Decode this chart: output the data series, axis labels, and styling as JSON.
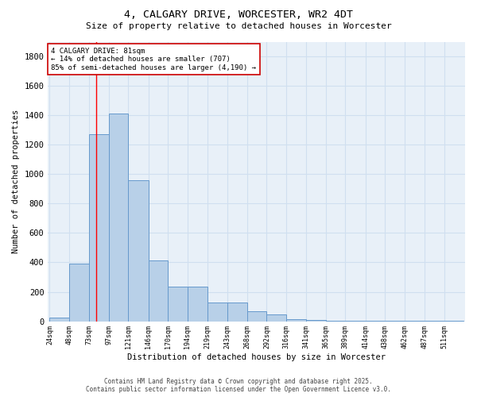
{
  "title": "4, CALGARY DRIVE, WORCESTER, WR2 4DT",
  "subtitle": "Size of property relative to detached houses in Worcester",
  "xlabel": "Distribution of detached houses by size in Worcester",
  "ylabel": "Number of detached properties",
  "bar_edges": [
    24,
    48,
    73,
    97,
    121,
    146,
    170,
    194,
    219,
    243,
    268,
    292,
    316,
    341,
    365,
    389,
    414,
    438,
    462,
    487,
    511
  ],
  "bar_heights": [
    25,
    390,
    1270,
    1410,
    960,
    415,
    235,
    235,
    125,
    125,
    70,
    45,
    15,
    10,
    5,
    5,
    5,
    5,
    5,
    5,
    5
  ],
  "bar_color": "#b8d0e8",
  "bar_edge_color": "#6699cc",
  "grid_color": "#d0dff0",
  "background_color": "#e8f0f8",
  "red_line_x": 81,
  "annotation_text": "4 CALGARY DRIVE: 81sqm\n← 14% of detached houses are smaller (707)\n85% of semi-detached houses are larger (4,190) →",
  "annotation_box_color": "#ffffff",
  "annotation_box_edge": "#cc0000",
  "ylim": [
    0,
    1900
  ],
  "yticks": [
    0,
    200,
    400,
    600,
    800,
    1000,
    1200,
    1400,
    1600,
    1800
  ],
  "footer_line1": "Contains HM Land Registry data © Crown copyright and database right 2025.",
  "footer_line2": "Contains public sector information licensed under the Open Government Licence v3.0."
}
